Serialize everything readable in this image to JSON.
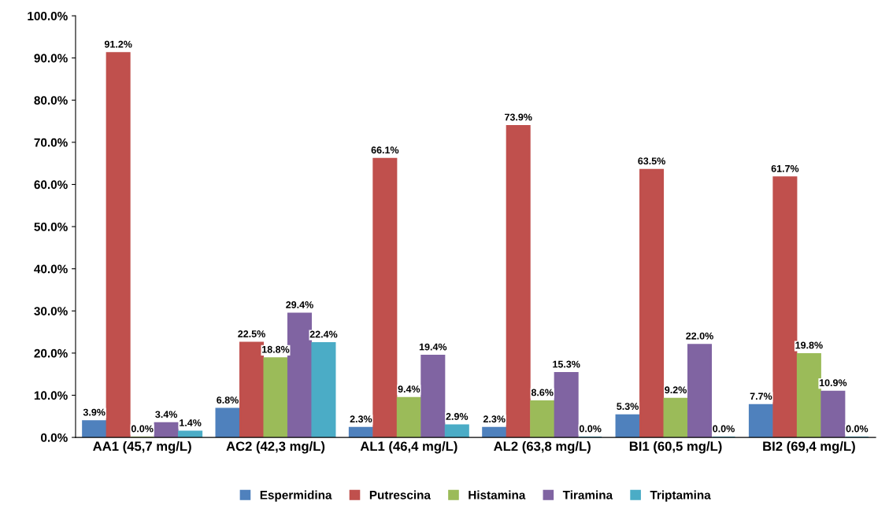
{
  "chart_data": {
    "type": "bar",
    "categories": [
      "AA1 (45,7 mg/L)",
      "AC2 (42,3 mg/L)",
      "AL1 (46,4 mg/L)",
      "AL2 (63,8 mg/L)",
      "BI1 (60,5 mg/L)",
      "BI2 (69,4 mg/L)"
    ],
    "series": [
      {
        "name": "Espermidina",
        "color": "#4f81bd",
        "values": [
          3.9,
          6.8,
          2.3,
          2.3,
          5.3,
          7.7
        ],
        "value_labels": [
          "3.9%",
          "6.8%",
          "2.3%",
          "2.3%",
          "5.3%",
          "7.7%"
        ]
      },
      {
        "name": "Putrescina",
        "color": "#c0504d",
        "values": [
          91.2,
          22.5,
          66.1,
          73.9,
          63.5,
          61.7
        ],
        "value_labels": [
          "91.2%",
          "22.5%",
          "66.1%",
          "73.9%",
          "63.5%",
          "61.7%"
        ]
      },
      {
        "name": "Histamina",
        "color": "#9bbb59",
        "values": [
          0.0,
          18.8,
          9.4,
          8.6,
          9.2,
          19.8
        ],
        "value_labels": [
          "0.0%",
          "18.8%",
          "9.4%",
          "8.6%",
          "9.2%",
          "19.8%"
        ]
      },
      {
        "name": "Tiramina",
        "color": "#8064a2",
        "values": [
          3.4,
          29.4,
          19.4,
          15.3,
          22.0,
          10.9
        ],
        "value_labels": [
          "3.4%",
          "29.4%",
          "19.4%",
          "15.3%",
          "22.0%",
          "10.9%"
        ]
      },
      {
        "name": "Triptamina",
        "color": "#4bacc6",
        "values": [
          1.4,
          22.4,
          2.9,
          0.0,
          0.0,
          0.0
        ],
        "value_labels": [
          "1.4%",
          "22.4%",
          "2.9%",
          "0.0%",
          "0.0%",
          "0.0%"
        ]
      }
    ],
    "ylim": [
      0,
      100
    ],
    "yticks": [
      {
        "value": 0,
        "label": "0.0%"
      },
      {
        "value": 10,
        "label": "10.0%"
      },
      {
        "value": 20,
        "label": "20.0%"
      },
      {
        "value": 30,
        "label": "30.0%"
      },
      {
        "value": 40,
        "label": "40.0%"
      },
      {
        "value": 50,
        "label": "50.0%"
      },
      {
        "value": 60,
        "label": "60.0%"
      },
      {
        "value": 70,
        "label": "70.0%"
      },
      {
        "value": 80,
        "label": "80.0%"
      },
      {
        "value": 90,
        "label": "90.0%"
      },
      {
        "value": 100,
        "label": "100.0%"
      }
    ],
    "grid": false,
    "legend": "bottom"
  }
}
